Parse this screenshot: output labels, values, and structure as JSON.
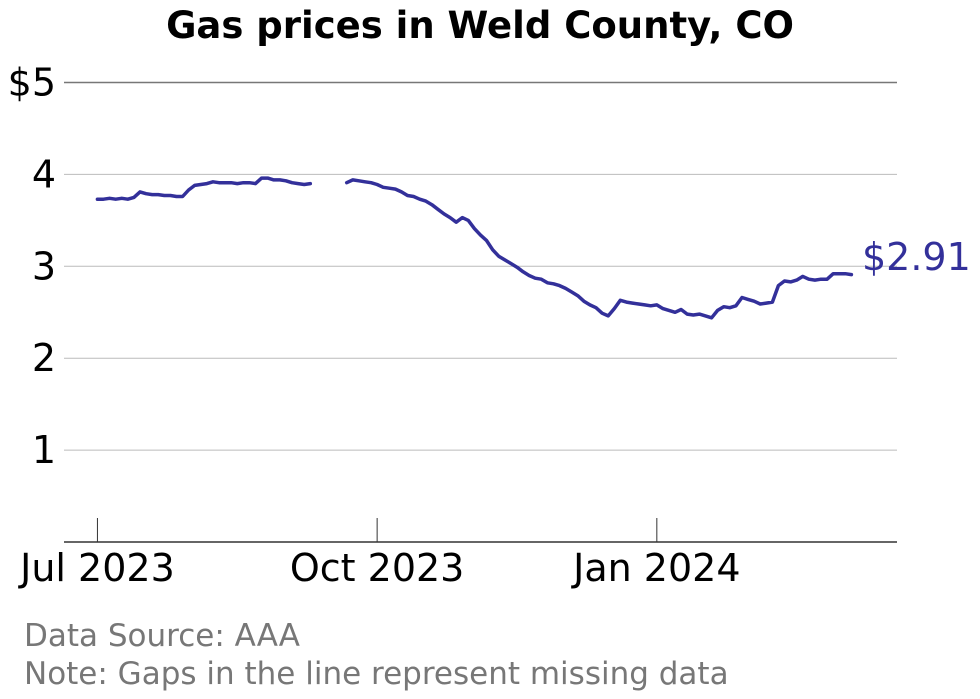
{
  "chart_data": {
    "type": "line",
    "title": "Gas prices in Weld County, CO",
    "xlabel": "",
    "ylabel": "",
    "ylim": [
      0,
      5
    ],
    "y_ticks": [
      "1",
      "2",
      "3",
      "4",
      "$5"
    ],
    "y_tick_values": [
      1,
      2,
      3,
      4,
      5
    ],
    "x_ticks": [
      "Jul 2023",
      "Oct 2023",
      "Jan 2024"
    ],
    "x_tick_dates": [
      "2023-07-01",
      "2023-10-01",
      "2024-01-01"
    ],
    "xlim": [
      "2023-06-20",
      "2024-03-20"
    ],
    "grid": "horizontal",
    "line_color": "#33309a",
    "end_label": "$2.91",
    "series": [
      {
        "segments": [
          [
            [
              "2023-07-01",
              3.73
            ],
            [
              "2023-07-03",
              3.73
            ],
            [
              "2023-07-05",
              3.74
            ],
            [
              "2023-07-07",
              3.73
            ],
            [
              "2023-07-09",
              3.74
            ],
            [
              "2023-07-11",
              3.73
            ],
            [
              "2023-07-13",
              3.75
            ],
            [
              "2023-07-15",
              3.81
            ],
            [
              "2023-07-17",
              3.79
            ],
            [
              "2023-07-19",
              3.78
            ],
            [
              "2023-07-21",
              3.78
            ],
            [
              "2023-07-23",
              3.77
            ],
            [
              "2023-07-25",
              3.77
            ],
            [
              "2023-07-27",
              3.76
            ],
            [
              "2023-07-29",
              3.76
            ],
            [
              "2023-07-31",
              3.83
            ],
            [
              "2023-08-02",
              3.88
            ],
            [
              "2023-08-04",
              3.89
            ],
            [
              "2023-08-06",
              3.9
            ],
            [
              "2023-08-08",
              3.92
            ],
            [
              "2023-08-10",
              3.91
            ],
            [
              "2023-08-12",
              3.91
            ],
            [
              "2023-08-14",
              3.91
            ],
            [
              "2023-08-16",
              3.9
            ],
            [
              "2023-08-18",
              3.91
            ],
            [
              "2023-08-20",
              3.91
            ],
            [
              "2023-08-22",
              3.9
            ],
            [
              "2023-08-24",
              3.96
            ],
            [
              "2023-08-26",
              3.96
            ],
            [
              "2023-08-28",
              3.94
            ],
            [
              "2023-08-30",
              3.94
            ],
            [
              "2023-09-01",
              3.93
            ],
            [
              "2023-09-03",
              3.91
            ],
            [
              "2023-09-05",
              3.9
            ],
            [
              "2023-09-07",
              3.89
            ],
            [
              "2023-09-09",
              3.9
            ]
          ],
          [
            [
              "2023-09-21",
              3.91
            ],
            [
              "2023-09-23",
              3.94
            ],
            [
              "2023-09-25",
              3.93
            ],
            [
              "2023-09-27",
              3.92
            ],
            [
              "2023-09-29",
              3.91
            ],
            [
              "2023-10-01",
              3.89
            ],
            [
              "2023-10-03",
              3.86
            ],
            [
              "2023-10-05",
              3.85
            ],
            [
              "2023-10-07",
              3.84
            ],
            [
              "2023-10-09",
              3.81
            ],
            [
              "2023-10-11",
              3.77
            ],
            [
              "2023-10-13",
              3.76
            ],
            [
              "2023-10-15",
              3.73
            ],
            [
              "2023-10-17",
              3.71
            ],
            [
              "2023-10-19",
              3.67
            ],
            [
              "2023-10-21",
              3.62
            ],
            [
              "2023-10-23",
              3.57
            ],
            [
              "2023-10-25",
              3.53
            ],
            [
              "2023-10-27",
              3.48
            ],
            [
              "2023-10-29",
              3.53
            ],
            [
              "2023-10-31",
              3.5
            ],
            [
              "2023-11-02",
              3.41
            ],
            [
              "2023-11-04",
              3.34
            ],
            [
              "2023-11-06",
              3.28
            ],
            [
              "2023-11-08",
              3.18
            ],
            [
              "2023-11-10",
              3.11
            ],
            [
              "2023-11-12",
              3.07
            ],
            [
              "2023-11-14",
              3.03
            ],
            [
              "2023-11-16",
              2.99
            ],
            [
              "2023-11-18",
              2.94
            ],
            [
              "2023-11-20",
              2.9
            ],
            [
              "2023-11-22",
              2.87
            ],
            [
              "2023-11-24",
              2.86
            ],
            [
              "2023-11-26",
              2.82
            ],
            [
              "2023-11-28",
              2.81
            ],
            [
              "2023-11-30",
              2.79
            ],
            [
              "2023-12-02",
              2.76
            ],
            [
              "2023-12-04",
              2.72
            ],
            [
              "2023-12-06",
              2.68
            ],
            [
              "2023-12-08",
              2.62
            ],
            [
              "2023-12-10",
              2.58
            ],
            [
              "2023-12-12",
              2.55
            ],
            [
              "2023-12-14",
              2.49
            ],
            [
              "2023-12-16",
              2.46
            ],
            [
              "2023-12-18",
              2.54
            ],
            [
              "2023-12-20",
              2.63
            ],
            [
              "2023-12-22",
              2.61
            ],
            [
              "2023-12-24",
              2.6
            ],
            [
              "2023-12-26",
              2.59
            ],
            [
              "2023-12-28",
              2.58
            ],
            [
              "2023-12-30",
              2.57
            ],
            [
              "2024-01-01",
              2.58
            ],
            [
              "2024-01-03",
              2.54
            ],
            [
              "2024-01-05",
              2.52
            ],
            [
              "2024-01-07",
              2.5
            ],
            [
              "2024-01-09",
              2.53
            ],
            [
              "2024-01-11",
              2.48
            ],
            [
              "2024-01-13",
              2.47
            ],
            [
              "2024-01-15",
              2.48
            ],
            [
              "2024-01-17",
              2.46
            ],
            [
              "2024-01-19",
              2.44
            ],
            [
              "2024-01-21",
              2.52
            ],
            [
              "2024-01-23",
              2.56
            ],
            [
              "2024-01-25",
              2.55
            ],
            [
              "2024-01-27",
              2.57
            ],
            [
              "2024-01-29",
              2.66
            ],
            [
              "2024-01-31",
              2.64
            ],
            [
              "2024-02-02",
              2.62
            ],
            [
              "2024-02-04",
              2.59
            ],
            [
              "2024-02-06",
              2.6
            ],
            [
              "2024-02-08",
              2.61
            ],
            [
              "2024-02-10",
              2.79
            ],
            [
              "2024-02-12",
              2.84
            ],
            [
              "2024-02-14",
              2.83
            ],
            [
              "2024-02-16",
              2.85
            ],
            [
              "2024-02-18",
              2.89
            ],
            [
              "2024-02-20",
              2.86
            ],
            [
              "2024-02-22",
              2.85
            ],
            [
              "2024-02-24",
              2.86
            ],
            [
              "2024-02-26",
              2.86
            ],
            [
              "2024-02-28",
              2.92
            ],
            [
              "2024-03-01",
              2.92
            ],
            [
              "2024-03-03",
              2.92
            ],
            [
              "2024-03-05",
              2.91
            ]
          ]
        ]
      }
    ]
  },
  "notes": {
    "source": "Data Source: AAA",
    "note": "Note: Gaps in the line represent missing data"
  }
}
